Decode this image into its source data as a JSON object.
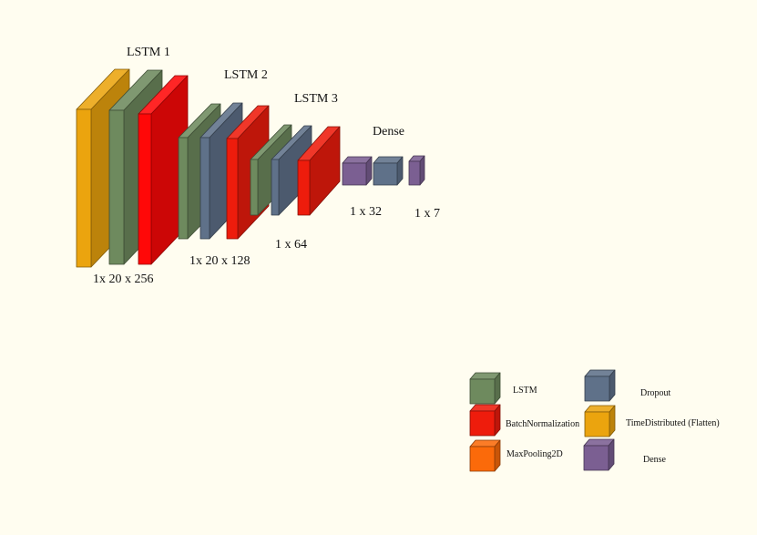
{
  "colors": {
    "lstm": "#6e8a5e",
    "batchnorm": "#ee1c0c",
    "batchnorm_bright": "#ff0808",
    "maxpool": "#fb6a0a",
    "dropout": "#5f7189",
    "flatten": "#eba40e",
    "dense": "#7b5f92",
    "background": "#fffdf0",
    "text": "#111111"
  },
  "diagram": {
    "labels": {
      "lstm1": "LSTM 1",
      "lstm2": "LSTM 2",
      "lstm3": "LSTM 3",
      "dense": "Dense",
      "dim1": "1x 20 x 256",
      "dim2": "1x 20 x 128",
      "dim3": "1 x 64",
      "dim4": "1 x 32",
      "dim5": "1 x 7"
    }
  },
  "legend": {
    "items": [
      {
        "label": "LSTM",
        "color": "#6e8a5e",
        "icon": "lstm-cube-icon"
      },
      {
        "label": "BatchNormalization",
        "color": "#ee1c0c",
        "icon": "batchnorm-cube-icon"
      },
      {
        "label": "MaxPooling2D",
        "color": "#fb6a0a",
        "icon": "maxpool-cube-icon"
      },
      {
        "label": "Dropout",
        "color": "#5f7189",
        "icon": "dropout-cube-icon"
      },
      {
        "label": "TimeDistributed (Flatten)",
        "color": "#eba40e",
        "icon": "flatten-cube-icon"
      },
      {
        "label": "Dense",
        "color": "#7b5f92",
        "icon": "dense-cube-icon"
      }
    ]
  }
}
